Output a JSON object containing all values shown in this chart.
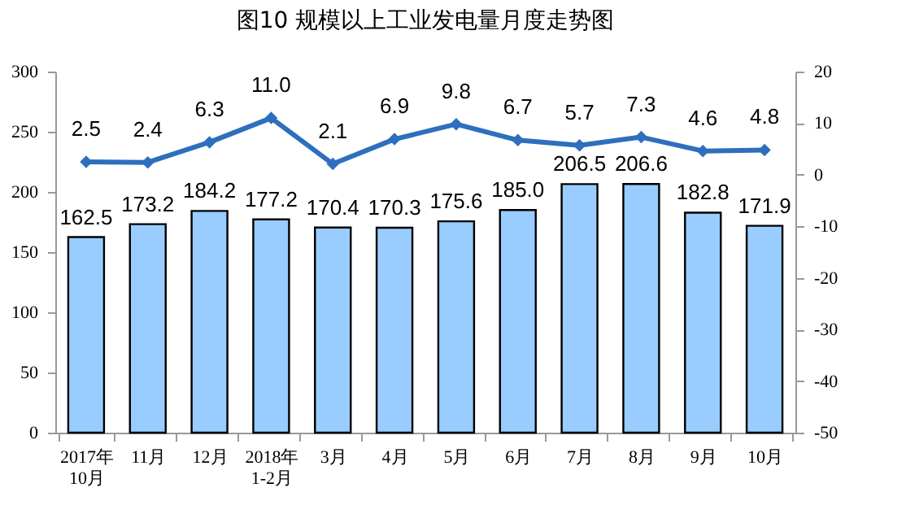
{
  "chart_data": {
    "type": "bar",
    "title": "图10  规模以上工业发电量月度走势图",
    "categories": [
      "2017年\n10月",
      "11月",
      "12月",
      "2018年\n1-2月",
      "3月",
      "4月",
      "5月",
      "6月",
      "7月",
      "8月",
      "9月",
      "10月"
    ],
    "series": [
      {
        "color": "#99ccff",
        "values": [
          162.5,
          173.2,
          184.2,
          177.2,
          170.4,
          170.3,
          175.6,
          185.0,
          206.5,
          206.6,
          182.8,
          171.9
        ],
        "value_labels": [
          "162.5",
          "173.2",
          "184.2",
          "177.2",
          "170.4",
          "170.3",
          "175.6",
          "185.0",
          "206.5",
          "206.6",
          "182.8",
          "171.9"
        ]
      },
      {
        "type": "line",
        "axis": "y2",
        "color": "#2e6fbd",
        "values": [
          2.5,
          2.4,
          6.3,
          11.0,
          2.1,
          6.9,
          9.8,
          6.7,
          5.7,
          7.3,
          4.6,
          4.8
        ],
        "value_labels": [
          "2.5",
          "2.4",
          "6.3",
          "11.0",
          "2.1",
          "6.9",
          "9.8",
          "6.7",
          "5.7",
          "7.3",
          "4.6",
          "4.8"
        ]
      }
    ],
    "ylim": [
      0,
      300
    ],
    "yticks": [
      0,
      50,
      100,
      150,
      200,
      250,
      300
    ],
    "y2lim": [
      -50,
      20
    ],
    "y2ticks": [
      -50,
      -40,
      -30,
      -20,
      -10,
      0,
      10,
      20
    ],
    "marker": "diamond"
  }
}
